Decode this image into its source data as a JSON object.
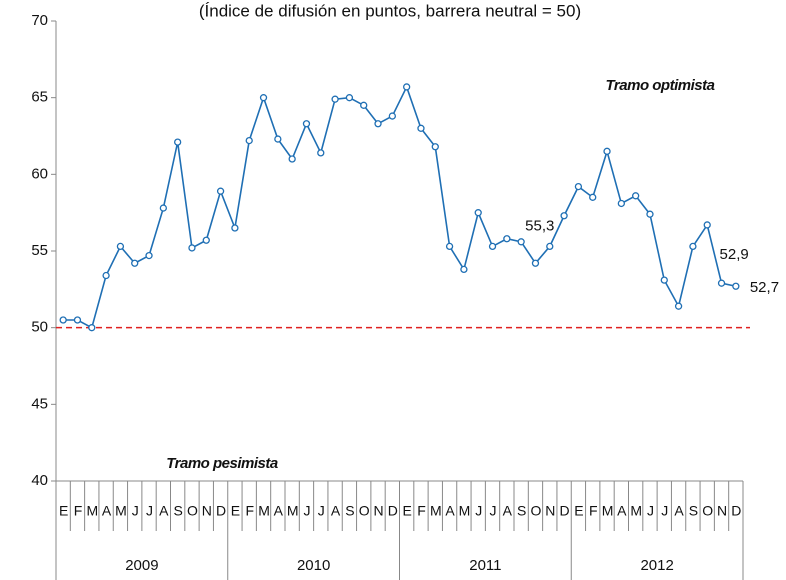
{
  "chart_data": {
    "type": "line",
    "subtitle": "(Índice de difusión en puntos, barrera neutral = 50)",
    "categories": [
      "E",
      "F",
      "M",
      "A",
      "M",
      "J",
      "J",
      "A",
      "S",
      "O",
      "N",
      "D",
      "E",
      "F",
      "M",
      "A",
      "M",
      "J",
      "J",
      "A",
      "S",
      "O",
      "N",
      "D",
      "E",
      "F",
      "M",
      "A",
      "M",
      "J",
      "J",
      "A",
      "S",
      "O",
      "N",
      "D",
      "E",
      "F",
      "M",
      "A",
      "M",
      "J",
      "J",
      "A",
      "S",
      "O",
      "N",
      "D"
    ],
    "years": [
      "2009",
      "2010",
      "2011",
      "2012"
    ],
    "series": [
      {
        "color": "#1f6fb4",
        "values": [
          50.5,
          50.5,
          50.0,
          53.4,
          55.3,
          54.2,
          54.7,
          57.8,
          62.1,
          55.2,
          55.7,
          58.9,
          56.5,
          62.2,
          65.0,
          62.3,
          61.0,
          63.3,
          61.4,
          64.9,
          65.0,
          64.5,
          63.3,
          63.8,
          65.7,
          63.0,
          61.8,
          55.3,
          53.8,
          57.5,
          55.3,
          55.8,
          55.6,
          54.2,
          55.3,
          57.3,
          59.2,
          58.5,
          61.5,
          58.1,
          58.6,
          57.4,
          53.1,
          51.4,
          55.3,
          56.7,
          52.9,
          52.7
        ],
        "value_labels": [
          null,
          null,
          null,
          null,
          null,
          null,
          null,
          null,
          null,
          null,
          null,
          null,
          null,
          null,
          null,
          null,
          null,
          null,
          null,
          null,
          null,
          null,
          null,
          null,
          null,
          null,
          null,
          null,
          null,
          null,
          null,
          null,
          null,
          null,
          "55,3",
          null,
          null,
          null,
          null,
          null,
          null,
          null,
          null,
          null,
          null,
          null,
          "52,9",
          "52,7"
        ]
      }
    ],
    "ylim": [
      40,
      70
    ],
    "yticks": [
      40,
      45,
      50,
      55,
      60,
      65,
      70
    ],
    "reference_line": {
      "value": 50,
      "color": "#e02020"
    },
    "annotations": [
      {
        "text": "Tramo optimista",
        "color": "#e02020"
      },
      {
        "text": "Tramo pesimista",
        "color": "#e02020"
      }
    ]
  }
}
